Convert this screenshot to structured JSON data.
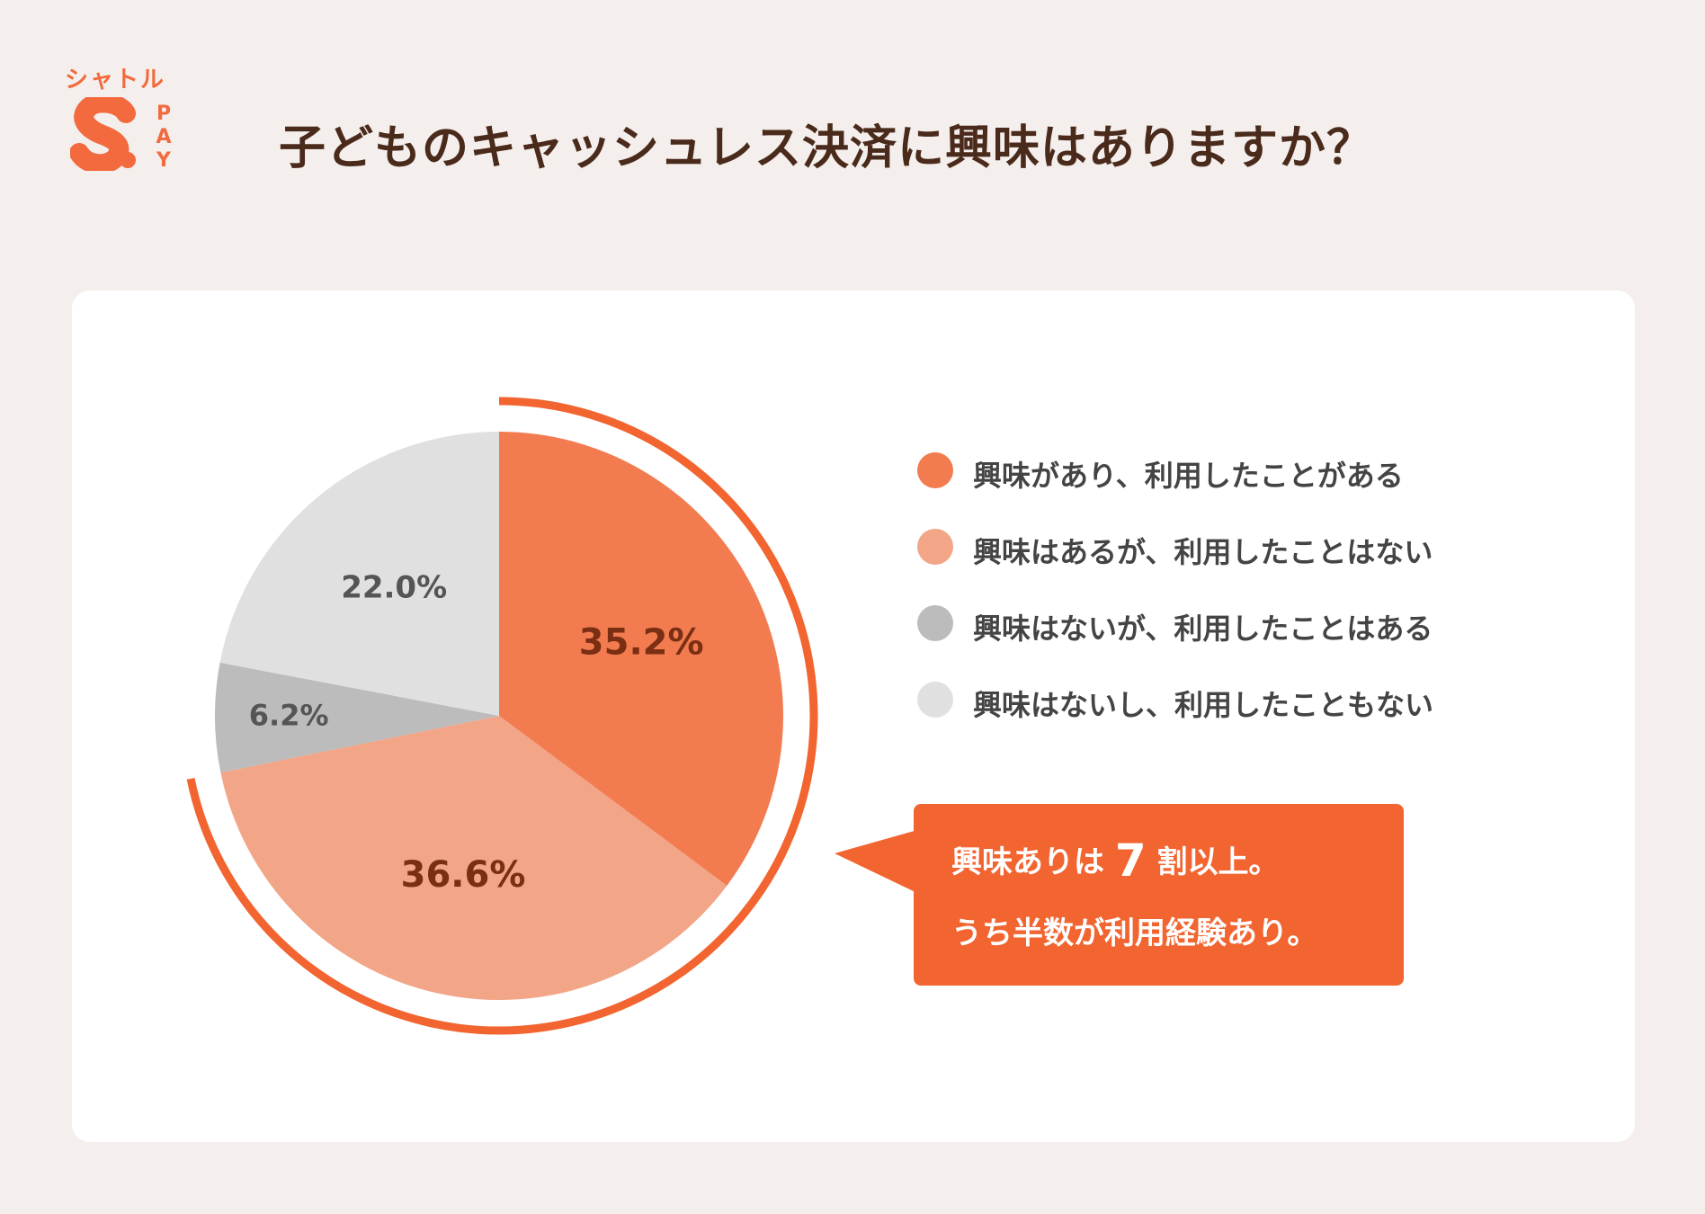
{
  "brand": {
    "name": "シャトル",
    "pay_letters": [
      "P",
      "A",
      "Y"
    ],
    "color": "#f26a3d"
  },
  "title": "子どものキャッシュレス決済に興味はありますか？",
  "colors": {
    "background": "#f4efed",
    "card": "#ffffff",
    "accent": "#f26430",
    "title_text": "#4a2a1a"
  },
  "chart_data": {
    "type": "pie",
    "start": "12 o'clock, clockwise",
    "categories": [
      "興味があり、利用したことがある",
      "興味はあるが、利用したことはない",
      "興味はないが、利用したことはある",
      "興味はないし、利用したこともない"
    ],
    "values": [
      35.2,
      36.6,
      6.2,
      22.0
    ],
    "value_labels": [
      "35.2%",
      "36.6%",
      "6.2%",
      "22.0%"
    ],
    "colors": [
      "#f27c50",
      "#f2a587",
      "#bcbcbc",
      "#e0e0e0"
    ],
    "label_colors": [
      "#7a2e12",
      "#7a2e12",
      "#555555",
      "#555555"
    ],
    "highlight_arc": {
      "covers_categories": [
        0,
        1
      ],
      "color": "#f26430"
    },
    "legend_position": "right"
  },
  "callout": {
    "line1_prefix": "興味ありは",
    "line1_number": "7",
    "line1_suffix": "割以上。",
    "line2": "うち半数が利用経験あり。"
  }
}
